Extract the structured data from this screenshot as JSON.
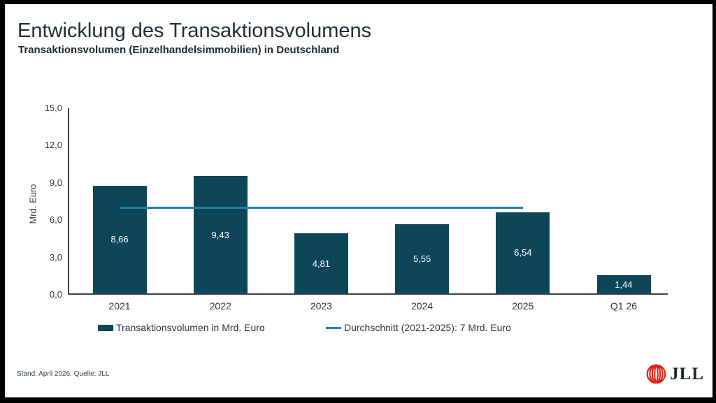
{
  "header": {
    "title": "Entwicklung des Transaktionsvolumens",
    "subtitle": "Transaktionsvolumen (Einzelhandelsimmobilien) in Deutschland"
  },
  "chart_data": {
    "type": "bar",
    "title": "Transaktionsvolumen (Einzelhandelsimmobilien) in Deutschland",
    "categories": [
      "2021",
      "2022",
      "2023",
      "2024",
      "2025",
      "Q1 26"
    ],
    "values": [
      8.66,
      9.43,
      4.81,
      5.55,
      6.54,
      1.44
    ],
    "value_labels": [
      "8,66",
      "9,43",
      "4,81",
      "5,55",
      "6,54",
      "1,44"
    ],
    "xlabel": "",
    "ylabel": "Mrd. Euro",
    "ylim": [
      0,
      15
    ],
    "yticks": [
      0,
      3,
      6,
      9,
      12,
      15
    ],
    "ytick_labels": [
      "0,0",
      "3,0",
      "6,0",
      "9,0",
      "12,0",
      "15,0"
    ],
    "grid": false,
    "bar_color": "#0e4659",
    "average_line": {
      "value": 7,
      "from": "2021",
      "to": "2025",
      "color": "#2283ab",
      "label": "Durchschnitt (2021-2025): 7 Mrd. Euro"
    },
    "legend_position": "bottom"
  },
  "legend": {
    "bar_label": "Transaktionsvolumen in Mrd. Euro",
    "line_label": "Durchschnitt (2021-2025): 7 Mrd. Euro"
  },
  "footer": {
    "note": "Stand: April 2026; Quelle: JLL",
    "logo_text": "JLL"
  },
  "colors": {
    "bar": "#0e4659",
    "average_line": "#2283ab",
    "logo_red": "#e2231a",
    "text_dark": "#242d38"
  }
}
